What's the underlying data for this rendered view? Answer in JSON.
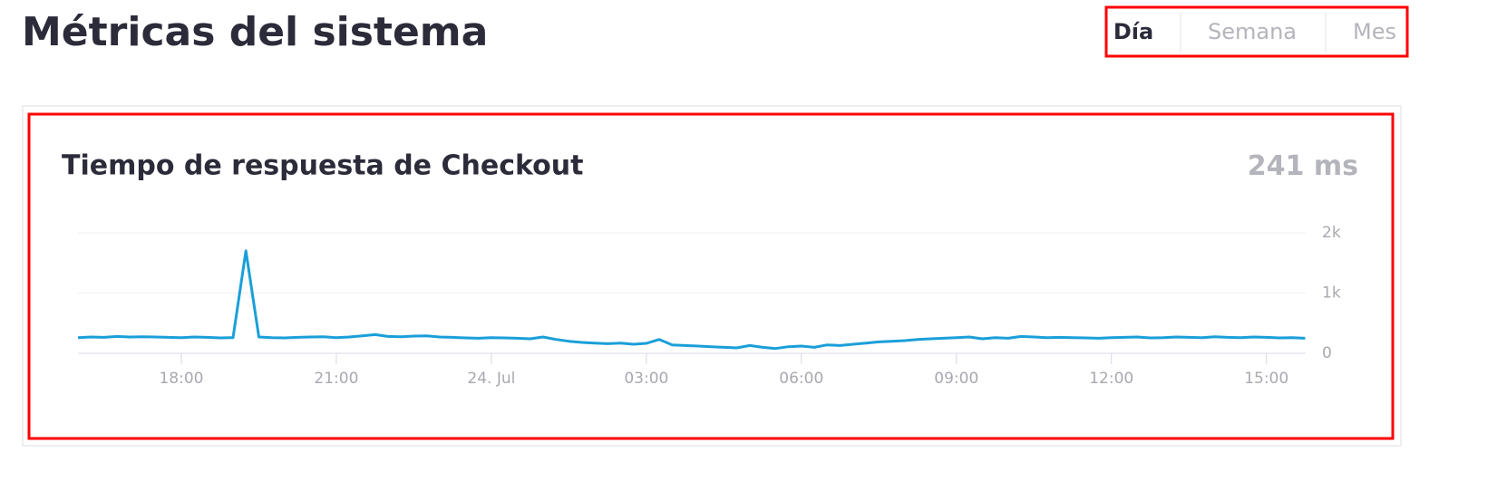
{
  "header": {
    "title": "Métricas del sistema",
    "tabs": [
      "Día",
      "Semana",
      "Mes"
    ]
  },
  "chart_data": {
    "type": "line",
    "title": "Tiempo de respuesta de Checkout",
    "current_value": 241,
    "current_unit": "ms",
    "x": [
      -8,
      -7.75,
      -7.5,
      -7.25,
      -7,
      -6.75,
      -6.5,
      -6.25,
      -6,
      -5.75,
      -5.5,
      -5.25,
      -5,
      -4.75,
      -4.5,
      -4.25,
      -4,
      -3.75,
      -3.5,
      -3.25,
      -3,
      -2.75,
      -2.5,
      -2.25,
      -2,
      -1.75,
      -1.5,
      -1.25,
      -1,
      -0.75,
      -0.5,
      -0.25,
      0,
      0.25,
      0.5,
      0.75,
      1,
      1.25,
      1.5,
      1.75,
      2,
      2.25,
      2.5,
      2.75,
      3,
      3.25,
      3.5,
      3.75,
      4,
      4.25,
      4.5,
      4.75,
      5,
      5.25,
      5.5,
      5.75,
      6,
      6.25,
      6.5,
      6.75,
      7,
      7.25,
      7.5,
      7.75,
      8,
      8.25,
      8.5,
      8.75,
      9,
      9.25,
      9.5,
      9.75,
      10,
      10.25,
      10.5,
      10.75,
      11,
      11.25,
      11.5,
      11.75,
      12,
      12.25,
      12.5,
      12.75,
      13,
      13.25,
      13.5,
      13.75,
      14,
      14.25,
      14.5,
      14.75,
      15,
      15.25,
      15.5,
      15.75
    ],
    "series": [
      {
        "name": "Checkout",
        "color": "#1a9fd9",
        "values": [
          260,
          270,
          265,
          280,
          270,
          275,
          270,
          265,
          260,
          270,
          265,
          255,
          260,
          1700,
          270,
          260,
          255,
          265,
          270,
          275,
          260,
          270,
          290,
          310,
          280,
          275,
          285,
          290,
          270,
          265,
          255,
          250,
          260,
          255,
          250,
          240,
          270,
          230,
          200,
          180,
          170,
          160,
          170,
          150,
          165,
          230,
          140,
          130,
          120,
          110,
          100,
          90,
          130,
          100,
          80,
          110,
          120,
          100,
          140,
          130,
          150,
          170,
          190,
          200,
          210,
          230,
          240,
          250,
          260,
          270,
          240,
          260,
          250,
          280,
          270,
          260,
          265,
          260,
          255,
          250,
          260,
          265,
          270,
          255,
          260,
          270,
          265,
          260,
          275,
          265,
          260,
          270,
          265,
          255,
          260,
          250
        ]
      }
    ],
    "xlim": [
      -8,
      15.76
    ],
    "xticks": [
      {
        "value": -6,
        "label": "18:00"
      },
      {
        "value": -3,
        "label": "21:00"
      },
      {
        "value": 0,
        "label": "24. Jul"
      },
      {
        "value": 3,
        "label": "03:00"
      },
      {
        "value": 6,
        "label": "06:00"
      },
      {
        "value": 9,
        "label": "09:00"
      },
      {
        "value": 12,
        "label": "12:00"
      },
      {
        "value": 15,
        "label": "15:00"
      }
    ],
    "ylim": [
      0,
      2000
    ],
    "yticks": [
      0,
      {
        "value": 1000,
        "label": "1k"
      },
      {
        "value": 2000,
        "label": "2k"
      }
    ],
    "grid": true
  }
}
